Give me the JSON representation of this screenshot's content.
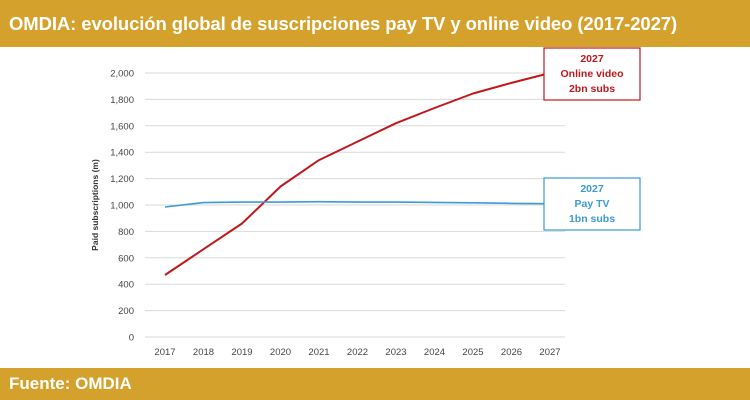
{
  "header": {
    "title": "OMDIA: evolución global de suscripciones pay TV y online video (2017-2027)"
  },
  "footer": {
    "source": "Fuente: OMDIA"
  },
  "colors": {
    "banner": "#d4a22c",
    "online_video": "#c0181b",
    "pay_tv": "#3c9ad6",
    "grid": "#d9d9d9"
  },
  "chart_data": {
    "type": "line",
    "title": "",
    "xlabel": "",
    "ylabel": "Paid subscriptions (m)",
    "x": [
      2017,
      2018,
      2019,
      2020,
      2021,
      2022,
      2023,
      2024,
      2025,
      2026,
      2027
    ],
    "ylim": [
      0,
      2000
    ],
    "yticks": [
      0,
      200,
      400,
      600,
      800,
      1000,
      1200,
      1400,
      1600,
      1800,
      2000
    ],
    "ytick_labels": [
      "0",
      "200",
      "400",
      "600",
      "800",
      "1,000",
      "1,200",
      "1,400",
      "1,600",
      "1,800",
      "2,000"
    ],
    "grid": true,
    "series": [
      {
        "key": "online_video",
        "color": "#c0181b",
        "values": [
          470,
          665,
          860,
          1140,
          1340,
          1480,
          1620,
          1735,
          1845,
          1925,
          2000
        ]
      },
      {
        "key": "pay_tv",
        "color": "#3c9ad6",
        "values": [
          985,
          1018,
          1022,
          1022,
          1025,
          1022,
          1022,
          1020,
          1017,
          1012,
          1010
        ]
      }
    ],
    "annotations": [
      {
        "key": "online_video",
        "color": "#c0181b",
        "lines": [
          "2027",
          "Online video",
          "2bn subs"
        ]
      },
      {
        "key": "pay_tv",
        "color": "#3c9ad6",
        "lines": [
          "2027",
          "Pay TV",
          "1bn subs"
        ]
      }
    ]
  }
}
